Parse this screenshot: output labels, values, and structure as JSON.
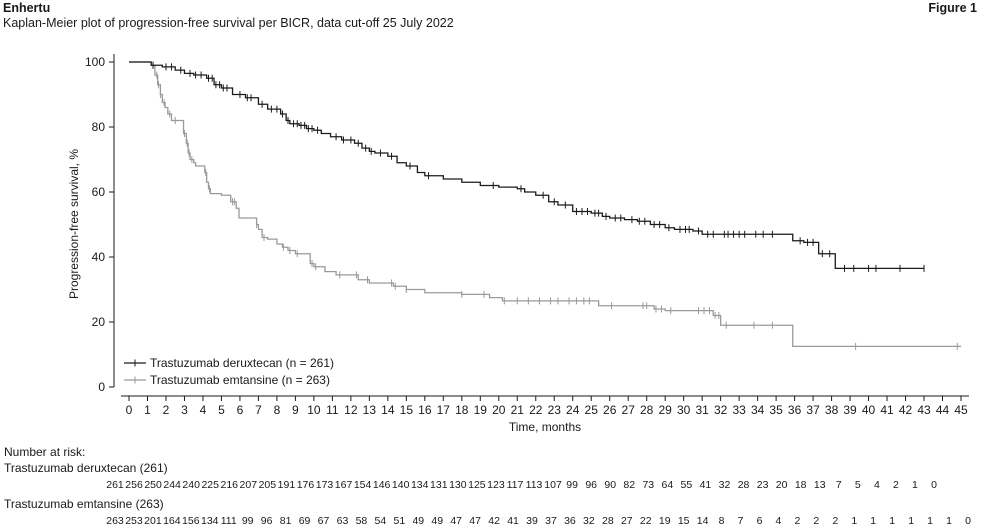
{
  "header": {
    "brand": "Enhertu",
    "subtitle": "Kaplan-Meier plot of progression-free survival per BICR, data cut-off 25 July 2022",
    "figure_label": "Figure 1"
  },
  "colors": {
    "deruxtecan": "#1a1a1a",
    "emtansine": "#9a9a9a",
    "axis": "#1a1a1a"
  },
  "chart_data": {
    "type": "line",
    "subtype": "kaplan-meier-step",
    "xlabel": "Time, months",
    "ylabel": "Progression-free survival, %",
    "xlim": [
      0,
      45
    ],
    "ylim": [
      0,
      100
    ],
    "x_ticks": [
      0,
      1,
      2,
      3,
      4,
      5,
      6,
      7,
      8,
      9,
      10,
      11,
      12,
      13,
      14,
      15,
      16,
      17,
      18,
      19,
      20,
      21,
      22,
      23,
      24,
      25,
      26,
      27,
      28,
      29,
      30,
      31,
      32,
      33,
      34,
      35,
      36,
      37,
      38,
      39,
      40,
      41,
      42,
      43,
      44,
      45
    ],
    "y_ticks": [
      0,
      20,
      40,
      60,
      80,
      100
    ],
    "legend_position": "bottom-left",
    "series": [
      {
        "name": "Trastuzumab deruxtecan (n = 261)",
        "color": "#1a1a1a",
        "steps": [
          [
            0,
            100
          ],
          [
            1.2,
            99
          ],
          [
            1.8,
            98.5
          ],
          [
            2.5,
            97.5
          ],
          [
            3,
            96.5
          ],
          [
            3.5,
            96
          ],
          [
            4.2,
            95
          ],
          [
            4.6,
            93
          ],
          [
            5,
            92
          ],
          [
            5.6,
            90
          ],
          [
            6.3,
            89
          ],
          [
            7,
            87
          ],
          [
            7.5,
            85.5
          ],
          [
            8.2,
            84
          ],
          [
            8.5,
            82
          ],
          [
            8.7,
            81
          ],
          [
            9.2,
            80.5
          ],
          [
            9.6,
            79.5
          ],
          [
            10,
            79
          ],
          [
            10.4,
            78
          ],
          [
            10.9,
            77
          ],
          [
            11.5,
            76
          ],
          [
            12.2,
            75
          ],
          [
            12.6,
            73.5
          ],
          [
            13,
            72.5
          ],
          [
            13.3,
            72
          ],
          [
            14,
            71
          ],
          [
            14.5,
            69
          ],
          [
            15,
            68
          ],
          [
            15.6,
            66
          ],
          [
            16,
            65
          ],
          [
            17,
            64
          ],
          [
            18,
            63
          ],
          [
            19,
            62
          ],
          [
            20,
            61.5
          ],
          [
            21,
            61
          ],
          [
            21.4,
            60
          ],
          [
            22,
            59
          ],
          [
            22.7,
            57
          ],
          [
            23.2,
            56
          ],
          [
            24,
            54
          ],
          [
            25,
            53.5
          ],
          [
            25.6,
            52.5
          ],
          [
            26,
            52
          ],
          [
            26.8,
            51.5
          ],
          [
            27.5,
            51
          ],
          [
            28.2,
            50
          ],
          [
            29,
            49
          ],
          [
            29.5,
            48.5
          ],
          [
            30.5,
            48
          ],
          [
            31,
            47
          ],
          [
            32,
            47
          ],
          [
            35,
            47
          ],
          [
            35.9,
            45
          ],
          [
            36.5,
            44.5
          ],
          [
            37.3,
            41
          ],
          [
            37.8,
            41
          ],
          [
            38.2,
            36.5
          ],
          [
            43,
            36.5
          ]
        ],
        "censor": [
          1.3,
          2,
          2.3,
          2.8,
          3.3,
          3.6,
          3.9,
          4.3,
          4.5,
          4.7,
          4.9,
          5.1,
          5.3,
          6,
          6.4,
          6.6,
          7.2,
          7.7,
          8,
          8.3,
          8.6,
          8.9,
          9.1,
          9.3,
          9.5,
          9.7,
          9.9,
          10.2,
          11.2,
          11.6,
          12,
          12.4,
          12.8,
          13.1,
          13.6,
          14.2,
          15.2,
          16.2,
          19.7,
          21.2,
          22.4,
          23,
          23.6,
          24.2,
          24.5,
          24.8,
          25.2,
          25.4,
          25.8,
          26.3,
          26.6,
          27.2,
          27.6,
          27.9,
          28.4,
          28.7,
          29.2,
          29.8,
          30.1,
          30.3,
          30.8,
          31.3,
          31.6,
          32.2,
          32.4,
          32.7,
          33,
          33.3,
          33.9,
          34.3,
          34.8,
          36.3,
          36.7,
          37,
          37.5,
          37.9,
          38.7,
          39.2,
          40,
          40.4,
          41.7,
          43
        ]
      },
      {
        "name": "Trastuzumab emtansine (n = 263)",
        "color": "#9a9a9a",
        "steps": [
          [
            0,
            100
          ],
          [
            1.2,
            99
          ],
          [
            1.4,
            96
          ],
          [
            1.55,
            93
          ],
          [
            1.7,
            90
          ],
          [
            1.8,
            87.5
          ],
          [
            1.95,
            86
          ],
          [
            2.1,
            84
          ],
          [
            2.3,
            82
          ],
          [
            2.95,
            78
          ],
          [
            3.1,
            75
          ],
          [
            3.2,
            72
          ],
          [
            3.3,
            70
          ],
          [
            3.5,
            69
          ],
          [
            3.6,
            68
          ],
          [
            4.1,
            66
          ],
          [
            4.2,
            63
          ],
          [
            4.3,
            61
          ],
          [
            4.4,
            59.5
          ],
          [
            5,
            59
          ],
          [
            5.5,
            57
          ],
          [
            5.8,
            55
          ],
          [
            5.95,
            52
          ],
          [
            6.9,
            50
          ],
          [
            7,
            48.5
          ],
          [
            7.2,
            46
          ],
          [
            7.5,
            45.5
          ],
          [
            8,
            44
          ],
          [
            8.3,
            43
          ],
          [
            8.6,
            42
          ],
          [
            9,
            41
          ],
          [
            9.8,
            38
          ],
          [
            10,
            37
          ],
          [
            10.6,
            35.5
          ],
          [
            11.2,
            34.5
          ],
          [
            12.4,
            33
          ],
          [
            13,
            32
          ],
          [
            14.3,
            31
          ],
          [
            15,
            30
          ],
          [
            16,
            29
          ],
          [
            18,
            28.5
          ],
          [
            19.5,
            27.5
          ],
          [
            20.2,
            26.5
          ],
          [
            24,
            26.5
          ],
          [
            25.4,
            25
          ],
          [
            28.4,
            24
          ],
          [
            29,
            23.5
          ],
          [
            31.6,
            22
          ],
          [
            32,
            19
          ],
          [
            35.9,
            12.5
          ],
          [
            45,
            12.5
          ]
        ],
        "censor": [
          1.3,
          1.5,
          1.6,
          1.7,
          1.9,
          2.2,
          2.5,
          3,
          3.15,
          3.25,
          3.4,
          4.15,
          4.35,
          5.6,
          5.7,
          6.9,
          7.3,
          8.35,
          8.7,
          9.1,
          9.9,
          10.1,
          11.4,
          12.3,
          12.9,
          14.2,
          14.4,
          15,
          18,
          19.2,
          20.3,
          21,
          21.6,
          22.2,
          22.8,
          23.2,
          23.8,
          24.2,
          24.6,
          24.9,
          26.1,
          27.8,
          28,
          28.5,
          28.8,
          29.3,
          30.8,
          31.1,
          31.4,
          31.7,
          31.9,
          32.3,
          33.8,
          34.8,
          39.3,
          44.8
        ]
      }
    ],
    "risk_table": {
      "title": "Number at risk:",
      "rows": [
        {
          "label": "Trastuzumab deruxtecan (261)",
          "values": [
            "261",
            "256",
            "250",
            "244",
            "240",
            "225",
            "216",
            "207",
            "205",
            "191",
            "176",
            "173",
            "167",
            "154",
            "146",
            "140",
            "134",
            "131",
            "130",
            "125",
            "123",
            "117",
            "113",
            "107",
            "99",
            "96",
            "90",
            "82",
            "73",
            "64",
            "55",
            "41",
            "32",
            "28",
            "23",
            "20",
            "18",
            "13",
            "7",
            "5",
            "4",
            "2",
            "1",
            "0"
          ]
        },
        {
          "label": "Trastuzumab emtansine (263)",
          "values": [
            "263",
            "253",
            "201",
            "164",
            "156",
            "134",
            "111",
            "99",
            "96",
            "81",
            "69",
            "67",
            "63",
            "58",
            "54",
            "51",
            "49",
            "49",
            "47",
            "47",
            "42",
            "41",
            "39",
            "37",
            "36",
            "32",
            "28",
            "27",
            "22",
            "19",
            "15",
            "14",
            "8",
            "7",
            "6",
            "4",
            "2",
            "2",
            "2",
            "1",
            "1",
            "1",
            "1",
            "1",
            "1",
            "0"
          ]
        }
      ]
    }
  }
}
